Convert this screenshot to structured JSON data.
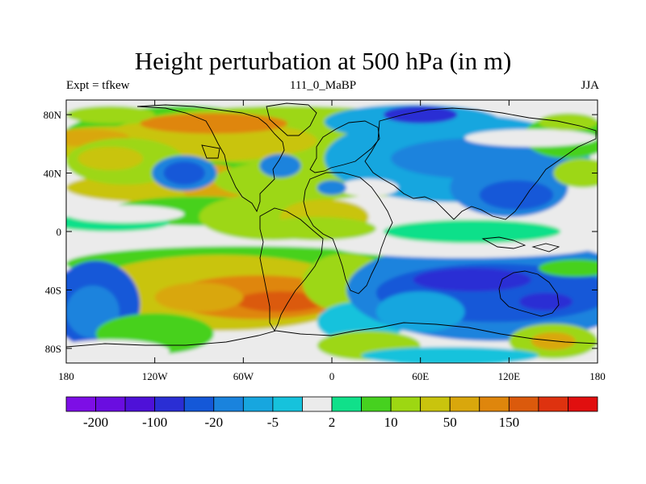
{
  "header": {
    "title": "Height perturbation at 500 hPa (in m)",
    "left": "Expt = tfkew",
    "center": "111_0_MaBP",
    "right": "JJA"
  },
  "chart_data": {
    "type": "contour-map",
    "projection": "cylindrical-equidistant",
    "xlim": [
      -180,
      180
    ],
    "ylim": [
      -90,
      90
    ],
    "x_ticks": [
      {
        "value": -180,
        "label": "180"
      },
      {
        "value": -120,
        "label": "120W"
      },
      {
        "value": -60,
        "label": "60W"
      },
      {
        "value": 0,
        "label": "0"
      },
      {
        "value": 60,
        "label": "60E"
      },
      {
        "value": 120,
        "label": "120E"
      },
      {
        "value": 180,
        "label": "180"
      }
    ],
    "y_ticks": [
      {
        "value": 80,
        "label": "80N"
      },
      {
        "value": 40,
        "label": "40N"
      },
      {
        "value": 0,
        "label": "0"
      },
      {
        "value": -40,
        "label": "40S"
      },
      {
        "value": -80,
        "label": "80S"
      }
    ],
    "colorbar": {
      "colors": [
        "#7d0ee6",
        "#6a0de0",
        "#4e11d8",
        "#2a2ed4",
        "#1458d8",
        "#1a83dd",
        "#17a6df",
        "#16c2dc",
        "#ebebeb",
        "#10e08a",
        "#46d11f",
        "#9dd712",
        "#c9c40d",
        "#d9a70c",
        "#df860c",
        "#db5a0c",
        "#de320f",
        "#e10f0f"
      ],
      "boundary_labels": [
        {
          "index": 1,
          "label": "-200"
        },
        {
          "index": 3,
          "label": "-100"
        },
        {
          "index": 5,
          "label": "-20"
        },
        {
          "index": 7,
          "label": "-5"
        },
        {
          "index": 9,
          "label": "2"
        },
        {
          "index": 11,
          "label": "10"
        },
        {
          "index": 13,
          "label": "50"
        },
        {
          "index": 15,
          "label": "150"
        }
      ]
    },
    "features": [
      {
        "lon": -180,
        "lat": 90,
        "rx": 360,
        "ry": 90,
        "level": 8
      },
      {
        "lon": -100,
        "lat": 62,
        "rx": 85,
        "ry": 24,
        "level": 10
      },
      {
        "lon": -150,
        "lat": 60,
        "rx": 50,
        "ry": 12,
        "level": 12
      },
      {
        "lon": -30,
        "lat": 66,
        "rx": 120,
        "ry": 20,
        "level": 11
      },
      {
        "lon": 30,
        "lat": 46,
        "rx": 60,
        "ry": 22,
        "level": 11
      },
      {
        "lon": -90,
        "lat": 62,
        "rx": 80,
        "ry": 14,
        "level": 12
      },
      {
        "lon": -80,
        "lat": 74,
        "rx": 50,
        "ry": 7,
        "level": 14
      },
      {
        "lon": -165,
        "lat": 64,
        "rx": 28,
        "ry": 6,
        "level": 13
      },
      {
        "lon": -120,
        "lat": 30,
        "rx": 60,
        "ry": 10,
        "level": 12
      },
      {
        "lon": -80,
        "lat": 32,
        "rx": 22,
        "ry": 14,
        "level": 13
      },
      {
        "lon": -140,
        "lat": 48,
        "rx": 40,
        "ry": 16,
        "level": 11
      },
      {
        "lon": -150,
        "lat": 50,
        "rx": 22,
        "ry": 8,
        "level": 12
      },
      {
        "lon": -20,
        "lat": 35,
        "rx": 60,
        "ry": 14,
        "level": 11
      },
      {
        "lon": -90,
        "lat": 14,
        "rx": 60,
        "ry": 10,
        "level": 10
      },
      {
        "lon": -40,
        "lat": 10,
        "rx": 50,
        "ry": 16,
        "level": 11
      },
      {
        "lon": -5,
        "lat": 10,
        "rx": 30,
        "ry": 12,
        "level": 12
      },
      {
        "lon": -150,
        "lat": 6,
        "rx": 40,
        "ry": 6,
        "level": 9
      },
      {
        "lon": -140,
        "lat": 12,
        "rx": 40,
        "ry": 6,
        "level": 8
      },
      {
        "lon": -10,
        "lat": 2,
        "rx": 40,
        "ry": 8,
        "level": 11
      },
      {
        "lon": -55,
        "lat": -12,
        "rx": 125,
        "ry": 6,
        "level": 8
      },
      {
        "lon": -60,
        "lat": -22,
        "rx": 120,
        "ry": 12,
        "level": 10
      },
      {
        "lon": -75,
        "lat": -42,
        "rx": 95,
        "ry": 26,
        "level": 12
      },
      {
        "lon": -50,
        "lat": -45,
        "rx": 60,
        "ry": 15,
        "level": 14
      },
      {
        "lon": -35,
        "lat": -48,
        "rx": 30,
        "ry": 7,
        "level": 15
      },
      {
        "lon": -90,
        "lat": -45,
        "rx": 30,
        "ry": 10,
        "level": 13
      },
      {
        "lon": 10,
        "lat": -35,
        "rx": 30,
        "ry": 20,
        "level": 11
      },
      {
        "lon": -160,
        "lat": -50,
        "rx": 30,
        "ry": 30,
        "level": 4
      },
      {
        "lon": -162,
        "lat": -55,
        "rx": 18,
        "ry": 18,
        "level": 5
      },
      {
        "lon": -120,
        "lat": -70,
        "rx": 40,
        "ry": 14,
        "level": 10
      },
      {
        "lon": -150,
        "lat": -82,
        "rx": 40,
        "ry": 8,
        "level": 8
      },
      {
        "lon": 20,
        "lat": -62,
        "rx": 30,
        "ry": 14,
        "level": 7
      },
      {
        "lon": 110,
        "lat": -40,
        "rx": 100,
        "ry": 35,
        "level": 5
      },
      {
        "lon": 110,
        "lat": -42,
        "rx": 80,
        "ry": 20,
        "level": 4
      },
      {
        "lon": 145,
        "lat": -48,
        "rx": 18,
        "ry": 6,
        "level": 3
      },
      {
        "lon": 95,
        "lat": -33,
        "rx": 40,
        "ry": 8,
        "level": 3
      },
      {
        "lon": 60,
        "lat": -55,
        "rx": 30,
        "ry": 14,
        "level": 6
      },
      {
        "lon": 25,
        "lat": -78,
        "rx": 35,
        "ry": 10,
        "level": 11
      },
      {
        "lon": 150,
        "lat": -75,
        "rx": 30,
        "ry": 12,
        "level": 11
      },
      {
        "lon": 150,
        "lat": -75,
        "rx": 15,
        "ry": 6,
        "level": 13
      },
      {
        "lon": 80,
        "lat": -85,
        "rx": 60,
        "ry": 6,
        "level": 7
      },
      {
        "lon": 90,
        "lat": -10,
        "rx": 90,
        "ry": 8,
        "level": 8
      },
      {
        "lon": 95,
        "lat": 0,
        "rx": 60,
        "ry": 8,
        "level": 9
      },
      {
        "lon": 85,
        "lat": 50,
        "rx": 90,
        "ry": 30,
        "level": 6
      },
      {
        "lon": 100,
        "lat": 50,
        "rx": 60,
        "ry": 14,
        "level": 5
      },
      {
        "lon": 120,
        "lat": 30,
        "rx": 40,
        "ry": 20,
        "level": 5
      },
      {
        "lon": 125,
        "lat": 25,
        "rx": 25,
        "ry": 10,
        "level": 4
      },
      {
        "lon": 55,
        "lat": 75,
        "rx": 60,
        "ry": 12,
        "level": 6
      },
      {
        "lon": 60,
        "lat": 80,
        "rx": 25,
        "ry": 6,
        "level": 3
      },
      {
        "lon": 160,
        "lat": 65,
        "rx": 30,
        "ry": 15,
        "level": 10
      },
      {
        "lon": 135,
        "lat": 64,
        "rx": 45,
        "ry": 6,
        "level": 8
      },
      {
        "lon": 170,
        "lat": 40,
        "rx": 20,
        "ry": 10,
        "level": 11
      },
      {
        "lon": 160,
        "lat": 75,
        "rx": 20,
        "ry": 6,
        "level": 11
      },
      {
        "lon": 25,
        "lat": 30,
        "rx": 20,
        "ry": 6,
        "level": 8
      },
      {
        "lon": -100,
        "lat": 40,
        "rx": 22,
        "ry": 12,
        "level": 5
      },
      {
        "lon": -100,
        "lat": 40,
        "rx": 14,
        "ry": 8,
        "level": 4
      },
      {
        "lon": -35,
        "lat": 45,
        "rx": 14,
        "ry": 8,
        "level": 5
      },
      {
        "lon": 0,
        "lat": 30,
        "rx": 10,
        "ry": 5,
        "level": 5
      },
      {
        "lon": -150,
        "lat": 80,
        "rx": 30,
        "ry": 6,
        "level": 11
      },
      {
        "lon": 165,
        "lat": -25,
        "rx": 25,
        "ry": 6,
        "level": 10
      }
    ]
  }
}
